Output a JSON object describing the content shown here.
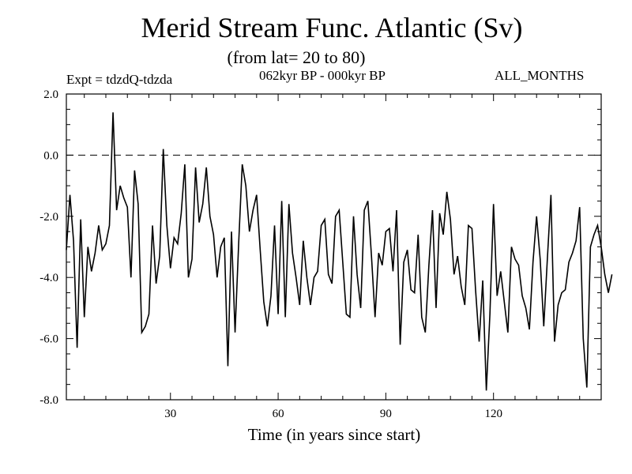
{
  "header": {
    "title": "Merid Stream Func. Atlantic (Sv)",
    "subtitle": "(from lat= 20 to 80)",
    "expt": "Expt = tdzdQ-tdzda",
    "period": "062kyr BP - 000kyr BP",
    "months": "ALL_MONTHS"
  },
  "chart_data": {
    "type": "line",
    "title": "Merid Stream Func. Atlantic (Sv)",
    "xlabel": "Time (in years since start)",
    "ylabel": "",
    "xlim": [
      1,
      150
    ],
    "ylim": [
      -8,
      2
    ],
    "x_ticks": [
      30,
      60,
      90,
      120
    ],
    "x_tick_labels": [
      "30",
      "60",
      "90",
      "120"
    ],
    "y_ticks": [
      2,
      0,
      -2,
      -4,
      -6,
      -8
    ],
    "y_tick_labels": [
      "2.0",
      "0.0",
      "-2.0",
      "-4.0",
      "-6.0",
      "-8.0"
    ],
    "zero_line": true,
    "grid": false,
    "series": [
      {
        "x_start": 1,
        "x_step": 1,
        "values": [
          -3.1,
          -1.3,
          -2.8,
          -6.3,
          -2.1,
          -5.3,
          -3.0,
          -3.8,
          -3.2,
          -2.3,
          -3.1,
          -2.9,
          -2.3,
          1.4,
          -1.8,
          -1.0,
          -1.4,
          -1.7,
          -4.0,
          -0.5,
          -1.6,
          -5.8,
          -5.6,
          -5.2,
          -2.3,
          -4.2,
          -3.3,
          0.2,
          -2.3,
          -3.7,
          -2.7,
          -2.9,
          -1.9,
          -0.3,
          -4.0,
          -3.4,
          -0.4,
          -2.2,
          -1.6,
          -0.4,
          -2.0,
          -2.6,
          -4.0,
          -3.0,
          -2.7,
          -6.9,
          -2.5,
          -5.8,
          -2.9,
          -0.3,
          -1.0,
          -2.5,
          -1.8,
          -1.3,
          -3.1,
          -4.8,
          -5.6,
          -4.6,
          -2.3,
          -5.2,
          -1.5,
          -5.3,
          -1.6,
          -3.2,
          -4.0,
          -4.9,
          -2.8,
          -4.0,
          -4.9,
          -4.0,
          -3.8,
          -2.3,
          -2.1,
          -3.9,
          -4.2,
          -2.0,
          -1.8,
          -3.5,
          -5.2,
          -5.3,
          -2.0,
          -3.9,
          -5.0,
          -1.8,
          -1.5,
          -3.3,
          -5.3,
          -3.2,
          -3.6,
          -2.5,
          -2.4,
          -3.8,
          -1.8,
          -6.2,
          -3.5,
          -3.1,
          -4.4,
          -4.5,
          -2.6,
          -5.3,
          -5.8,
          -3.6,
          -1.8,
          -5.0,
          -1.9,
          -2.6,
          -1.2,
          -2.1,
          -3.9,
          -3.3,
          -4.3,
          -4.9,
          -2.3,
          -2.4,
          -4.4,
          -6.1,
          -4.1,
          -7.7,
          -5.2,
          -1.6,
          -4.6,
          -3.8,
          -4.8,
          -5.8,
          -3.0,
          -3.4,
          -3.6,
          -4.6,
          -5.0,
          -5.7,
          -3.5,
          -2.0,
          -3.4,
          -5.6,
          -3.4,
          -1.3,
          -6.1,
          -4.9,
          -4.5,
          -4.4,
          -3.5,
          -3.2,
          -2.8,
          -1.7,
          -6.0,
          -7.6,
          -3.0,
          -2.6,
          -2.3,
          -3.0,
          -3.9,
          -4.5,
          -3.9
        ]
      }
    ]
  }
}
